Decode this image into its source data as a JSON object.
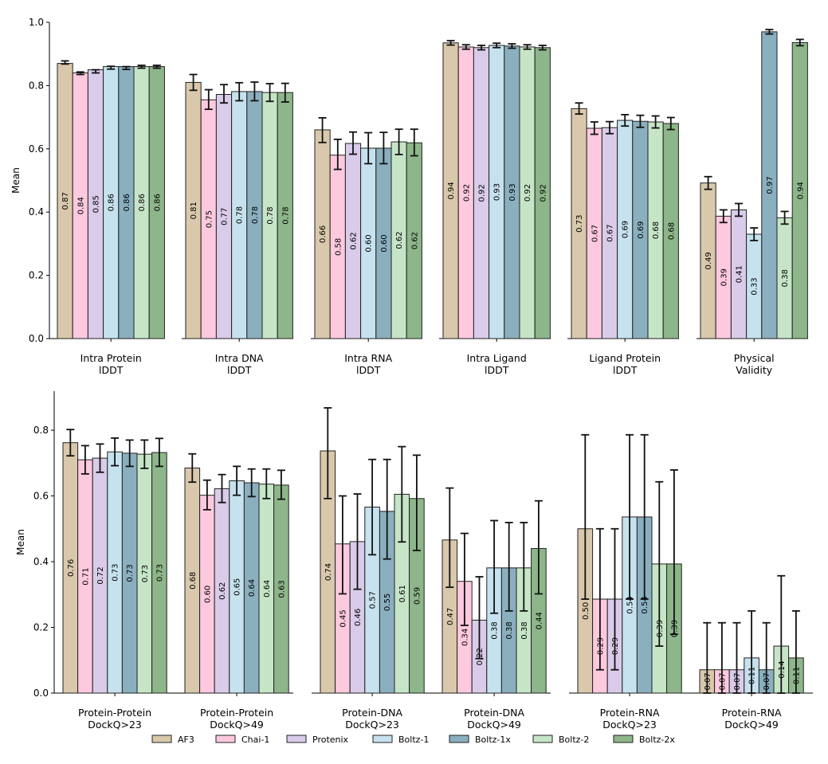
{
  "chart_data": [
    {
      "type": "bar",
      "ylabel": "Mean",
      "ylim": [
        0,
        1.0
      ],
      "yticks": [
        "0.0",
        "0.2",
        "0.4",
        "0.6",
        "0.8",
        "1.0"
      ],
      "series_names": [
        "AF3",
        "Chai-1",
        "Protenix",
        "Boltz-1",
        "Boltz-1x",
        "Boltz-2",
        "Boltz-2x"
      ],
      "groups": [
        {
          "label": [
            "Intra Protein",
            "lDDT"
          ],
          "values": [
            0.87,
            0.84,
            0.85,
            0.86,
            0.86,
            0.86,
            0.86
          ],
          "labels": [
            "0.87",
            "0.84",
            "0.85",
            "0.86",
            "0.86",
            "0.86",
            "0.86"
          ],
          "err": [
            [
              0.868,
              0.878
            ],
            [
              0.835,
              0.843
            ],
            [
              0.84,
              0.85
            ],
            [
              0.852,
              0.861
            ],
            [
              0.851,
              0.86
            ],
            [
              0.855,
              0.864
            ],
            [
              0.855,
              0.864
            ]
          ]
        },
        {
          "label": [
            "Intra DNA",
            "lDDT"
          ],
          "values": [
            0.81,
            0.755,
            0.772,
            0.781,
            0.781,
            0.778,
            0.778
          ],
          "labels": [
            "0.81",
            "0.75",
            "0.77",
            "0.78",
            "0.78",
            "0.78",
            "0.78"
          ],
          "err": [
            [
              0.785,
              0.835
            ],
            [
              0.725,
              0.787
            ],
            [
              0.745,
              0.803
            ],
            [
              0.752,
              0.809
            ],
            [
              0.752,
              0.811
            ],
            [
              0.75,
              0.806
            ],
            [
              0.748,
              0.807
            ]
          ]
        },
        {
          "label": [
            "Intra RNA",
            "lDDT"
          ],
          "values": [
            0.66,
            0.58,
            0.617,
            0.602,
            0.602,
            0.622,
            0.619
          ],
          "labels": [
            "0.66",
            "0.58",
            "0.62",
            "0.60",
            "0.60",
            "0.62",
            "0.62"
          ],
          "err": [
            [
              0.62,
              0.698
            ],
            [
              0.535,
              0.63
            ],
            [
              0.583,
              0.653
            ],
            [
              0.553,
              0.651
            ],
            [
              0.553,
              0.652
            ],
            [
              0.582,
              0.662
            ],
            [
              0.578,
              0.662
            ]
          ]
        },
        {
          "label": [
            "Intra Ligand",
            "lDDT"
          ],
          "values": [
            0.935,
            0.922,
            0.92,
            0.927,
            0.925,
            0.922,
            0.92
          ],
          "labels": [
            "0.94",
            "0.92",
            "0.92",
            "0.93",
            "0.93",
            "0.92",
            "0.92"
          ],
          "err": [
            [
              0.928,
              0.942
            ],
            [
              0.915,
              0.929
            ],
            [
              0.913,
              0.927
            ],
            [
              0.92,
              0.934
            ],
            [
              0.918,
              0.932
            ],
            [
              0.915,
              0.929
            ],
            [
              0.913,
              0.927
            ]
          ]
        },
        {
          "label": [
            "Ligand Protein",
            "lDDT"
          ],
          "values": [
            0.727,
            0.665,
            0.667,
            0.69,
            0.687,
            0.685,
            0.68
          ],
          "labels": [
            "0.73",
            "0.67",
            "0.67",
            "0.69",
            "0.69",
            "0.68",
            "0.68"
          ],
          "err": [
            [
              0.71,
              0.745
            ],
            [
              0.646,
              0.685
            ],
            [
              0.648,
              0.686
            ],
            [
              0.672,
              0.708
            ],
            [
              0.668,
              0.706
            ],
            [
              0.666,
              0.704
            ],
            [
              0.661,
              0.699
            ]
          ]
        },
        {
          "label": [
            "Physical",
            "Validity"
          ],
          "values": [
            0.492,
            0.387,
            0.407,
            0.33,
            0.97,
            0.382,
            0.936
          ],
          "labels": [
            "0.49",
            "0.39",
            "0.41",
            "0.33",
            "0.97",
            "0.38",
            "0.94"
          ],
          "err": [
            [
              0.472,
              0.512
            ],
            [
              0.367,
              0.407
            ],
            [
              0.387,
              0.427
            ],
            [
              0.31,
              0.35
            ],
            [
              0.963,
              0.977
            ],
            [
              0.362,
              0.402
            ],
            [
              0.926,
              0.946
            ]
          ]
        }
      ]
    },
    {
      "type": "bar",
      "ylabel": "Mean",
      "ylim": [
        0,
        0.92
      ],
      "yticks": [
        "0.0",
        "0.2",
        "0.4",
        "0.6",
        "0.8"
      ],
      "series_names": [
        "AF3",
        "Chai-1",
        "Protenix",
        "Boltz-1",
        "Boltz-1x",
        "Boltz-2",
        "Boltz-2x"
      ],
      "groups": [
        {
          "label": [
            "Protein-Protein",
            "DockQ>23"
          ],
          "values": [
            0.762,
            0.71,
            0.715,
            0.734,
            0.73,
            0.727,
            0.732
          ],
          "labels": [
            "0.76",
            "0.71",
            "0.72",
            "0.73",
            "0.73",
            "0.73",
            "0.73"
          ],
          "err": [
            [
              0.722,
              0.802
            ],
            [
              0.667,
              0.753
            ],
            [
              0.672,
              0.758
            ],
            [
              0.692,
              0.776
            ],
            [
              0.69,
              0.77
            ],
            [
              0.684,
              0.77
            ],
            [
              0.69,
              0.775
            ]
          ]
        },
        {
          "label": [
            "Protein-Protein",
            "DockQ>49"
          ],
          "values": [
            0.685,
            0.602,
            0.622,
            0.646,
            0.64,
            0.636,
            0.633
          ],
          "labels": [
            "0.68",
            "0.60",
            "0.62",
            "0.65",
            "0.64",
            "0.64",
            "0.63"
          ],
          "err": [
            [
              0.642,
              0.728
            ],
            [
              0.558,
              0.648
            ],
            [
              0.58,
              0.665
            ],
            [
              0.602,
              0.69
            ],
            [
              0.598,
              0.682
            ],
            [
              0.592,
              0.682
            ],
            [
              0.59,
              0.678
            ]
          ]
        },
        {
          "label": [
            "Protein-DNA",
            "DockQ>23"
          ],
          "values": [
            0.737,
            0.454,
            0.461,
            0.566,
            0.553,
            0.605,
            0.592
          ],
          "labels": [
            "0.74",
            "0.45",
            "0.46",
            "0.57",
            "0.55",
            "0.61",
            "0.59"
          ],
          "err": [
            [
              0.592,
              0.868
            ],
            [
              0.302,
              0.6
            ],
            [
              0.316,
              0.606
            ],
            [
              0.421,
              0.711
            ],
            [
              0.408,
              0.711
            ],
            [
              0.46,
              0.75
            ],
            [
              0.434,
              0.724
            ]
          ]
        },
        {
          "label": [
            "Protein-DNA",
            "DockQ>49"
          ],
          "values": [
            0.466,
            0.34,
            0.222,
            0.381,
            0.381,
            0.381,
            0.44
          ],
          "labels": [
            "0.47",
            "0.34",
            "0.22",
            "0.38",
            "0.38",
            "0.38",
            "0.44"
          ],
          "err": [
            [
              0.322,
              0.624
            ],
            [
              0.206,
              0.486
            ],
            [
              0.105,
              0.354
            ],
            [
              0.243,
              0.525
            ],
            [
              0.25,
              0.519
            ],
            [
              0.25,
              0.519
            ],
            [
              0.302,
              0.585
            ]
          ]
        },
        {
          "label": [
            "Protein-RNA",
            "DockQ>23"
          ],
          "values": [
            0.5,
            0.286,
            0.286,
            0.536,
            0.536,
            0.393,
            0.393
          ],
          "labels": [
            "0.50",
            "0.29",
            "0.29",
            "0.54",
            "0.54",
            "0.39",
            "0.39"
          ],
          "err": [
            [
              0.286,
              0.786
            ],
            [
              0.071,
              0.5
            ],
            [
              0.071,
              0.5
            ],
            [
              0.286,
              0.786
            ],
            [
              0.286,
              0.786
            ],
            [
              0.143,
              0.643
            ],
            [
              0.179,
              0.679
            ]
          ]
        },
        {
          "label": [
            "Protein-RNA",
            "DockQ>49"
          ],
          "values": [
            0.071,
            0.071,
            0.071,
            0.107,
            0.071,
            0.143,
            0.107
          ],
          "labels": [
            "0.07",
            "0.07",
            "0.07",
            "0.11",
            "0.07",
            "0.14",
            "0.11"
          ],
          "err": [
            [
              0,
              0.214
            ],
            [
              0,
              0.214
            ],
            [
              0,
              0.214
            ],
            [
              0,
              0.25
            ],
            [
              0,
              0.214
            ],
            [
              0,
              0.357
            ],
            [
              0,
              0.25
            ]
          ]
        }
      ]
    }
  ],
  "legend": {
    "entries": [
      "AF3",
      "Chai-1",
      "Protenix",
      "Boltz-1",
      "Boltz-1x",
      "Boltz-2",
      "Boltz-2x"
    ],
    "colors": [
      "#d9c8ab",
      "#fdc9de",
      "#d9cbe9",
      "#c6e2ee",
      "#8aafbf",
      "#c6e5c7",
      "#8db68a"
    ],
    "placement": "bottom-center"
  }
}
